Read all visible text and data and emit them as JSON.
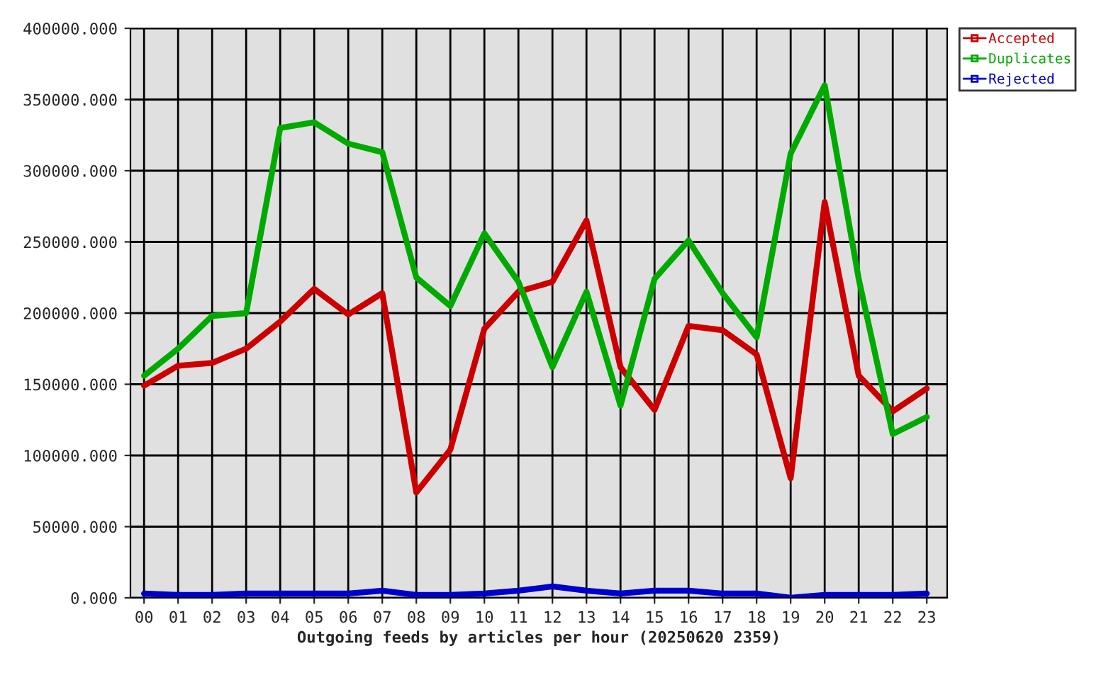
{
  "chart_data": {
    "type": "line",
    "xlabel": "Outgoing feeds by articles per hour (20250620 2359)",
    "categories": [
      "00",
      "01",
      "02",
      "03",
      "04",
      "05",
      "06",
      "07",
      "08",
      "09",
      "10",
      "11",
      "12",
      "13",
      "14",
      "15",
      "16",
      "17",
      "18",
      "19",
      "20",
      "21",
      "22",
      "23"
    ],
    "series": [
      {
        "name": "Accepted",
        "color": "#cc0000",
        "values": [
          149000,
          163000,
          165000,
          175000,
          194000,
          217000,
          199000,
          214000,
          74000,
          104000,
          189000,
          215000,
          222000,
          265000,
          162000,
          132000,
          191000,
          188000,
          171000,
          84000,
          278000,
          156000,
          131000,
          147000
        ]
      },
      {
        "name": "Duplicates",
        "color": "#00aa00",
        "values": [
          156000,
          175000,
          198000,
          200000,
          330000,
          334000,
          319000,
          313000,
          225000,
          205000,
          256000,
          222000,
          162000,
          215000,
          135000,
          224000,
          251000,
          214000,
          183000,
          312000,
          360000,
          224000,
          115000,
          127000
        ]
      },
      {
        "name": "Rejected",
        "color": "#0000cc",
        "values": [
          3000,
          2000,
          2000,
          3000,
          3000,
          3000,
          3000,
          5000,
          2000,
          2000,
          3000,
          5000,
          8000,
          5000,
          3000,
          5000,
          5000,
          3000,
          3000,
          0,
          2000,
          2000,
          2000,
          3000
        ]
      }
    ],
    "ylim": [
      0,
      400000
    ],
    "yticks": [
      {
        "value": 0,
        "label": "0.000"
      },
      {
        "value": 50000,
        "label": "50000.000"
      },
      {
        "value": 100000,
        "label": "100000.000"
      },
      {
        "value": 150000,
        "label": "150000.000"
      },
      {
        "value": 200000,
        "label": "200000.000"
      },
      {
        "value": 250000,
        "label": "250000.000"
      },
      {
        "value": 300000,
        "label": "300000.000"
      },
      {
        "value": 350000,
        "label": "350000.000"
      },
      {
        "value": 400000,
        "label": "400000.000"
      }
    ],
    "grid": true,
    "legend": "top right",
    "line_style": "solid"
  }
}
